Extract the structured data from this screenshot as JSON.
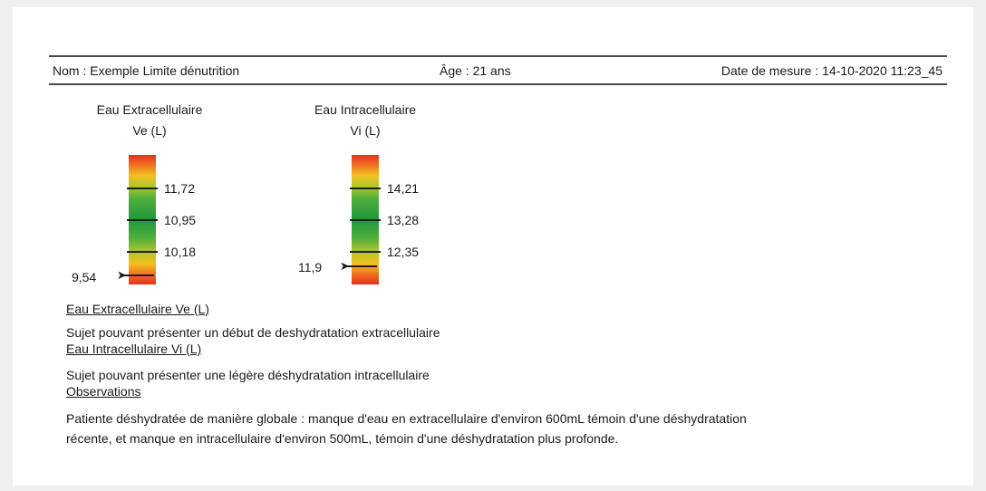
{
  "header": {
    "name": "Nom :  Exemple Limite dénutrition",
    "age": "Âge :  21 ans",
    "date": "Date de mesure :  14-10-2020 11:23_45"
  },
  "gauges": [
    {
      "title_line1": "Eau Extracellulaire",
      "title_line2": "Ve (L)",
      "ticks": [
        "11,72",
        "10,95",
        "10,18"
      ],
      "value": "9,54"
    },
    {
      "title_line1": "Eau Intracellulaire",
      "title_line2": "Vi (L)",
      "ticks": [
        "14,21",
        "13,28",
        "12,35"
      ],
      "value": "11,9"
    }
  ],
  "sections": [
    {
      "title": "Eau Extracellulaire Ve (L)",
      "text": "Sujet pouvant présenter un début de deshydratation extracellulaire"
    },
    {
      "title": "Eau Intracellulaire Vi (L)",
      "text": "Sujet pouvant présenter une légère déshydratation intracellulaire"
    },
    {
      "title": "Observations",
      "text": "Patiente déshydratée de manière globale : manque d'eau en extracellulaire d'environ 600mL témoin d'une déshydratation",
      "text2": "récente, et manque en intracellulaire d'environ 500mL, témoin d'une déshydratation plus profonde."
    }
  ],
  "colors": {
    "gauge_top": "#e0311f",
    "gauge_mid": "#20973b",
    "gauge_warn": "#f2c01f",
    "rule": "#4a4a4a"
  }
}
